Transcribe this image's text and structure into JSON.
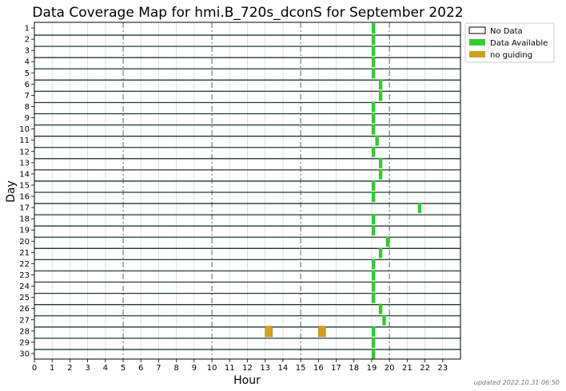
{
  "chart_data": {
    "type": "heatmap",
    "title": "Data Coverage Map for hmi.B_720s_dconS for September 2022",
    "xlabel": "Hour",
    "ylabel": "Day",
    "xlim": [
      0,
      24
    ],
    "x_ticks": [
      "0",
      "1",
      "2",
      "3",
      "4",
      "5",
      "6",
      "7",
      "8",
      "9",
      "10",
      "11",
      "12",
      "13",
      "14",
      "15",
      "16",
      "17",
      "18",
      "19",
      "20",
      "21",
      "22",
      "23"
    ],
    "y_ticks": [
      "1",
      "2",
      "3",
      "4",
      "5",
      "6",
      "7",
      "8",
      "9",
      "10",
      "11",
      "12",
      "13",
      "14",
      "15",
      "16",
      "17",
      "18",
      "19",
      "20",
      "21",
      "22",
      "23",
      "24",
      "25",
      "26",
      "27",
      "28",
      "29",
      "30"
    ],
    "grid": true,
    "major_gridlines_hours": [
      5,
      10,
      15,
      20
    ],
    "legend": {
      "placement": "outside-top-right",
      "entries": [
        {
          "name": "No Data",
          "color": "#ffffff"
        },
        {
          "name": "Data Available",
          "color": "#33cc33"
        },
        {
          "name": "no guiding",
          "color": "#d4a020"
        }
      ]
    },
    "colors": {
      "data_available": "#33cc33",
      "no_guiding": "#d4a020",
      "no_data": "#ffffff"
    },
    "segments": [
      {
        "day": 1,
        "start": 19.0,
        "end": 19.2,
        "status": "data_available"
      },
      {
        "day": 2,
        "start": 19.0,
        "end": 19.2,
        "status": "data_available"
      },
      {
        "day": 3,
        "start": 19.0,
        "end": 19.2,
        "status": "data_available"
      },
      {
        "day": 4,
        "start": 19.0,
        "end": 19.2,
        "status": "data_available"
      },
      {
        "day": 5,
        "start": 19.0,
        "end": 19.2,
        "status": "data_available"
      },
      {
        "day": 6,
        "start": 19.4,
        "end": 19.6,
        "status": "data_available"
      },
      {
        "day": 7,
        "start": 19.4,
        "end": 19.6,
        "status": "data_available"
      },
      {
        "day": 8,
        "start": 19.0,
        "end": 19.2,
        "status": "data_available"
      },
      {
        "day": 9,
        "start": 19.0,
        "end": 19.2,
        "status": "data_available"
      },
      {
        "day": 10,
        "start": 19.0,
        "end": 19.2,
        "status": "data_available"
      },
      {
        "day": 11,
        "start": 19.2,
        "end": 19.4,
        "status": "data_available"
      },
      {
        "day": 12,
        "start": 19.0,
        "end": 19.2,
        "status": "data_available"
      },
      {
        "day": 13,
        "start": 19.4,
        "end": 19.6,
        "status": "data_available"
      },
      {
        "day": 14,
        "start": 19.4,
        "end": 19.6,
        "status": "data_available"
      },
      {
        "day": 15,
        "start": 19.0,
        "end": 19.2,
        "status": "data_available"
      },
      {
        "day": 16,
        "start": 19.0,
        "end": 19.2,
        "status": "data_available"
      },
      {
        "day": 17,
        "start": 21.6,
        "end": 21.8,
        "status": "data_available"
      },
      {
        "day": 18,
        "start": 19.0,
        "end": 19.2,
        "status": "data_available"
      },
      {
        "day": 19,
        "start": 19.0,
        "end": 19.2,
        "status": "data_available"
      },
      {
        "day": 20,
        "start": 19.8,
        "end": 20.0,
        "status": "data_available"
      },
      {
        "day": 21,
        "start": 19.4,
        "end": 19.6,
        "status": "data_available"
      },
      {
        "day": 22,
        "start": 19.0,
        "end": 19.2,
        "status": "data_available"
      },
      {
        "day": 23,
        "start": 19.0,
        "end": 19.2,
        "status": "data_available"
      },
      {
        "day": 24,
        "start": 19.0,
        "end": 19.2,
        "status": "data_available"
      },
      {
        "day": 25,
        "start": 19.0,
        "end": 19.2,
        "status": "data_available"
      },
      {
        "day": 26,
        "start": 19.4,
        "end": 19.6,
        "status": "data_available"
      },
      {
        "day": 27,
        "start": 19.6,
        "end": 19.8,
        "status": "data_available"
      },
      {
        "day": 28,
        "start": 13.0,
        "end": 13.4,
        "status": "no_guiding"
      },
      {
        "day": 28,
        "start": 16.0,
        "end": 16.4,
        "status": "no_guiding"
      },
      {
        "day": 28,
        "start": 19.0,
        "end": 19.2,
        "status": "data_available"
      },
      {
        "day": 29,
        "start": 19.0,
        "end": 19.2,
        "status": "data_available"
      },
      {
        "day": 30,
        "start": 19.0,
        "end": 19.2,
        "status": "data_available"
      }
    ]
  },
  "footnote": "updated 2022.10.31 06:50"
}
